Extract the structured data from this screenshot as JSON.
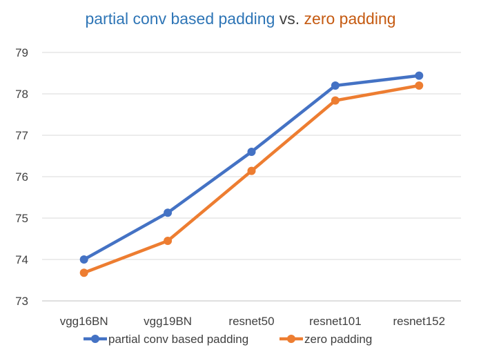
{
  "chart_data": {
    "type": "line",
    "title_parts": [
      {
        "text": "partial conv based padding",
        "color": "#2e75b6"
      },
      {
        "text": " vs. ",
        "color": "#404040"
      },
      {
        "text": "zero padding",
        "color": "#c55a11"
      }
    ],
    "categories": [
      "vgg16BN",
      "vgg19BN",
      "resnet50",
      "resnet101",
      "resnet152"
    ],
    "series": [
      {
        "name": "partial conv based padding",
        "values": [
          74.0,
          75.13,
          76.6,
          78.2,
          78.44
        ],
        "color": "#4472c4"
      },
      {
        "name": "zero padding",
        "values": [
          73.68,
          74.45,
          76.14,
          77.84,
          78.2
        ],
        "color": "#ed7d31"
      }
    ],
    "ylim": [
      73,
      79
    ],
    "yticks": [
      73,
      74,
      75,
      76,
      77,
      78,
      79
    ],
    "grid": true,
    "legend": "bottom"
  }
}
